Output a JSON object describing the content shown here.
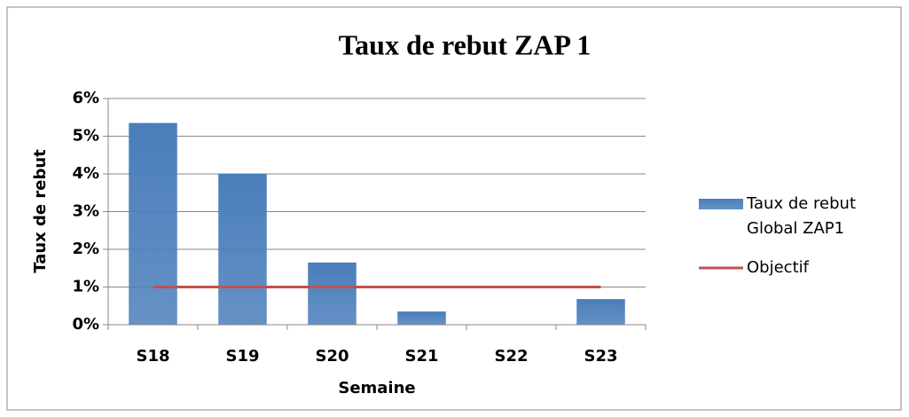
{
  "chart_data": {
    "type": "bar",
    "title": "Taux de rebut ZAP 1",
    "x_label": "Semaine",
    "y_label": "Taux de rebut",
    "categories": [
      "S18",
      "S19",
      "S20",
      "S21",
      "S22",
      "S23"
    ],
    "series": [
      {
        "name": "Taux de rebut Global ZAP1",
        "type": "bar",
        "color": "#4a7ebb",
        "values": [
          5.35,
          4.0,
          1.65,
          0.35,
          0,
          0.68
        ]
      },
      {
        "name": "Objectif",
        "type": "line",
        "color": "#c0504d",
        "values": [
          1,
          1,
          1,
          1,
          1,
          1
        ]
      }
    ],
    "ylim": [
      0,
      6
    ],
    "yticks": [
      {
        "value": 0,
        "label": "0%"
      },
      {
        "value": 1,
        "label": "1%"
      },
      {
        "value": 2,
        "label": "2%"
      },
      {
        "value": 3,
        "label": "3%"
      },
      {
        "value": 4,
        "label": "4%"
      },
      {
        "value": 5,
        "label": "5%"
      },
      {
        "value": 6,
        "label": "6%"
      }
    ],
    "grid": true,
    "legend": "right"
  }
}
